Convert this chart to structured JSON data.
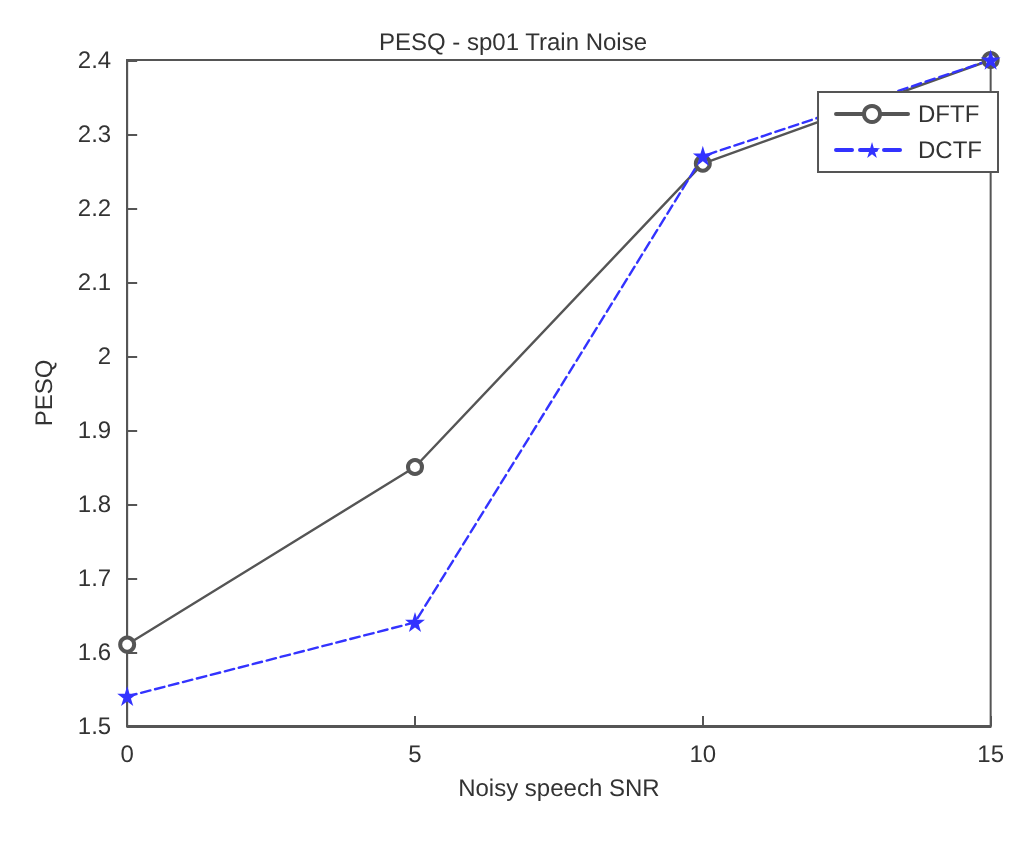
{
  "chart_data": {
    "type": "line",
    "title": "PESQ - sp01 Train Noise",
    "xlabel": "Noisy speech SNR",
    "ylabel": "PESQ",
    "x": [
      0,
      5,
      10,
      15
    ],
    "series": [
      {
        "name": "DFTF",
        "color": "#555555",
        "values": [
          1.61,
          1.85,
          2.26,
          2.4
        ],
        "marker": "circle",
        "line_style": "solid"
      },
      {
        "name": "DCTF",
        "color": "#3333ff",
        "values": [
          1.54,
          1.64,
          2.27,
          2.4
        ],
        "marker": "star",
        "line_style": "dashed"
      }
    ],
    "xlim": [
      0,
      15
    ],
    "xticks": [
      0,
      5,
      10,
      15
    ],
    "ylim": [
      1.5,
      2.4
    ],
    "yticks": [
      1.5,
      1.6,
      1.7,
      1.8,
      1.9,
      2,
      2.1,
      2.2,
      2.3,
      2.4
    ],
    "grid": false,
    "legend": "top right"
  }
}
